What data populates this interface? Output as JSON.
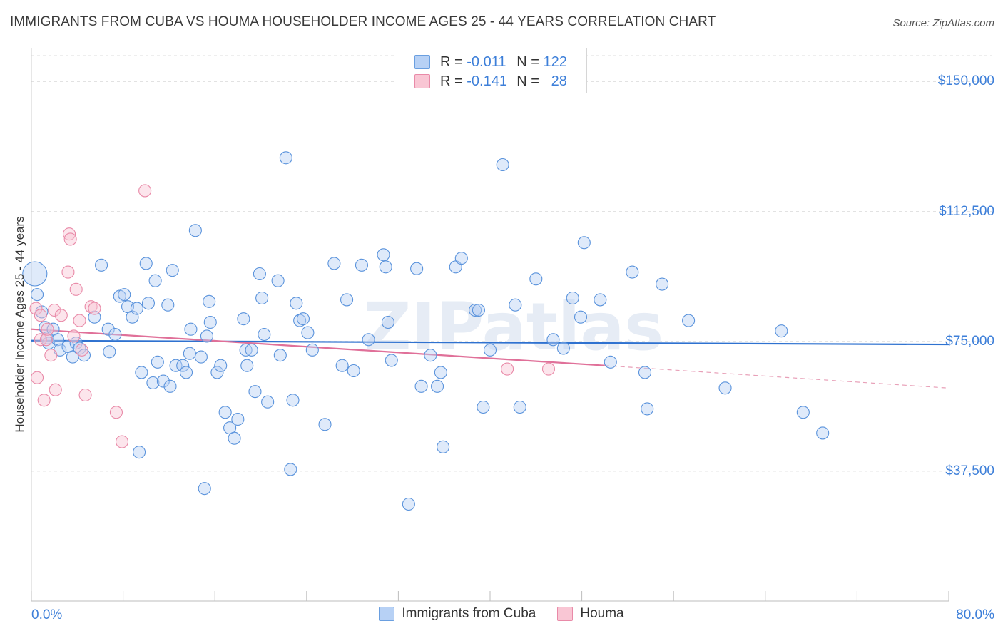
{
  "title": "IMMIGRANTS FROM CUBA VS HOUMA HOUSEHOLDER INCOME AGES 25 - 44 YEARS CORRELATION CHART",
  "source": "Source: ZipAtlas.com",
  "watermark": "ZIPatlas",
  "legend": {
    "r_label": "R =",
    "n_label": "N =",
    "series": [
      {
        "r": "-0.011",
        "n": "122",
        "fill": "#b7d1f5",
        "stroke": "#6a9fe0"
      },
      {
        "r": "-0.141",
        "n": "28",
        "fill": "#f9c6d4",
        "stroke": "#e98aa8"
      }
    ]
  },
  "colors": {
    "blue": "#3d7fd9",
    "pink": "#e07099",
    "grid": "#dddddd"
  },
  "chart_data": {
    "type": "scatter",
    "xlabel": "",
    "ylabel": "Householder Income Ages 25 - 44 years",
    "xlim": [
      0,
      80
    ],
    "ylim": [
      0,
      157500
    ],
    "x_tick_labels": [
      "0.0%",
      "80.0%"
    ],
    "y_ticks": [
      37500,
      75000,
      112500,
      150000
    ],
    "y_tick_labels": [
      "$37,500",
      "$75,000",
      "$112,500",
      "$150,000"
    ],
    "grid": "horizontal dashed",
    "legend_position": "top-center",
    "series": [
      {
        "name": "Immigrants from Cuba",
        "color": "#3d7fd9",
        "trend": {
          "x": [
            0,
            80
          ],
          "y": [
            75200,
            74100
          ]
        },
        "points": [
          [
            0.3,
            94500
          ],
          [
            0.5,
            88500
          ],
          [
            0.9,
            83500
          ],
          [
            1.2,
            79000
          ],
          [
            1.4,
            76000
          ],
          [
            1.5,
            74500
          ],
          [
            1.9,
            78500
          ],
          [
            2.3,
            75500
          ],
          [
            2.5,
            72500
          ],
          [
            3.2,
            73500
          ],
          [
            3.6,
            70500
          ],
          [
            3.9,
            74500
          ],
          [
            4.2,
            73000
          ],
          [
            4.6,
            71000
          ],
          [
            5.5,
            82000
          ],
          [
            6.1,
            97000
          ],
          [
            6.7,
            78500
          ],
          [
            6.8,
            72000
          ],
          [
            7.3,
            77000
          ],
          [
            7.7,
            88000
          ],
          [
            8.1,
            88500
          ],
          [
            8.4,
            85000
          ],
          [
            8.8,
            82000
          ],
          [
            9.2,
            84500
          ],
          [
            9.4,
            43000
          ],
          [
            9.6,
            66000
          ],
          [
            10.0,
            97500
          ],
          [
            10.2,
            86000
          ],
          [
            10.6,
            63000
          ],
          [
            10.8,
            92500
          ],
          [
            11.0,
            69000
          ],
          [
            11.5,
            63500
          ],
          [
            11.9,
            85500
          ],
          [
            12.1,
            62000
          ],
          [
            12.3,
            95500
          ],
          [
            12.6,
            68000
          ],
          [
            13.2,
            68000
          ],
          [
            13.5,
            66000
          ],
          [
            13.8,
            71500
          ],
          [
            13.9,
            78500
          ],
          [
            14.3,
            107000
          ],
          [
            14.8,
            70500
          ],
          [
            15.1,
            32500
          ],
          [
            15.3,
            76500
          ],
          [
            15.5,
            86500
          ],
          [
            15.6,
            80500
          ],
          [
            16.2,
            66000
          ],
          [
            16.5,
            68000
          ],
          [
            16.9,
            54500
          ],
          [
            17.3,
            50000
          ],
          [
            17.7,
            47000
          ],
          [
            18.0,
            52500
          ],
          [
            18.5,
            81500
          ],
          [
            18.7,
            72500
          ],
          [
            18.8,
            68000
          ],
          [
            19.2,
            72500
          ],
          [
            19.5,
            60500
          ],
          [
            19.9,
            94500
          ],
          [
            20.1,
            87500
          ],
          [
            20.3,
            77000
          ],
          [
            20.6,
            57500
          ],
          [
            21.5,
            92500
          ],
          [
            21.7,
            71000
          ],
          [
            22.2,
            128000
          ],
          [
            22.6,
            38000
          ],
          [
            22.8,
            58000
          ],
          [
            23.1,
            86000
          ],
          [
            23.4,
            81000
          ],
          [
            23.7,
            81500
          ],
          [
            24.1,
            77500
          ],
          [
            24.5,
            72500
          ],
          [
            25.6,
            51000
          ],
          [
            26.4,
            97500
          ],
          [
            27.1,
            68000
          ],
          [
            27.5,
            87000
          ],
          [
            28.1,
            66500
          ],
          [
            28.8,
            97000
          ],
          [
            29.4,
            75500
          ],
          [
            30.7,
            100000
          ],
          [
            30.9,
            96500
          ],
          [
            31.1,
            80500
          ],
          [
            31.4,
            69500
          ],
          [
            32.9,
            28000
          ],
          [
            33.6,
            96000
          ],
          [
            34.0,
            62000
          ],
          [
            34.8,
            71000
          ],
          [
            35.4,
            62000
          ],
          [
            35.7,
            66000
          ],
          [
            35.9,
            44500
          ],
          [
            37.0,
            96500
          ],
          [
            37.5,
            99000
          ],
          [
            38.7,
            84000
          ],
          [
            39.0,
            84000
          ],
          [
            39.4,
            56000
          ],
          [
            40.0,
            72500
          ],
          [
            41.1,
            126000
          ],
          [
            42.2,
            85500
          ],
          [
            42.6,
            56000
          ],
          [
            44.0,
            93000
          ],
          [
            45.5,
            75500
          ],
          [
            46.4,
            73000
          ],
          [
            47.2,
            87500
          ],
          [
            47.9,
            82000
          ],
          [
            48.2,
            103500
          ],
          [
            49.6,
            87000
          ],
          [
            50.5,
            69000
          ],
          [
            52.4,
            95000
          ],
          [
            53.5,
            66000
          ],
          [
            53.7,
            55500
          ],
          [
            55.0,
            91500
          ],
          [
            57.3,
            81000
          ],
          [
            60.5,
            61500
          ],
          [
            65.4,
            78000
          ],
          [
            67.3,
            54500
          ],
          [
            69.0,
            48500
          ]
        ]
      },
      {
        "name": "Houma",
        "color": "#e07099",
        "trend": {
          "x": [
            0,
            50
          ],
          "y": [
            78500,
            68000
          ]
        },
        "trend_dashed": {
          "x": [
            50,
            80
          ],
          "y": [
            68000,
            61500
          ]
        },
        "points": [
          [
            0.4,
            84500
          ],
          [
            0.5,
            64500
          ],
          [
            0.8,
            82500
          ],
          [
            0.8,
            75500
          ],
          [
            1.1,
            58000
          ],
          [
            1.3,
            75500
          ],
          [
            1.4,
            78500
          ],
          [
            1.7,
            71000
          ],
          [
            2.0,
            84000
          ],
          [
            2.1,
            61000
          ],
          [
            2.6,
            82500
          ],
          [
            3.2,
            95000
          ],
          [
            3.3,
            106000
          ],
          [
            3.4,
            104500
          ],
          [
            3.7,
            76500
          ],
          [
            3.9,
            90000
          ],
          [
            4.2,
            81000
          ],
          [
            4.4,
            72500
          ],
          [
            4.7,
            59500
          ],
          [
            5.2,
            85000
          ],
          [
            5.5,
            84500
          ],
          [
            7.4,
            54500
          ],
          [
            7.9,
            46000
          ],
          [
            9.9,
            118500
          ],
          [
            41.5,
            67000
          ],
          [
            45.1,
            67000
          ]
        ]
      }
    ]
  },
  "bottom_legend": [
    "Immigrants from Cuba",
    "Houma"
  ]
}
